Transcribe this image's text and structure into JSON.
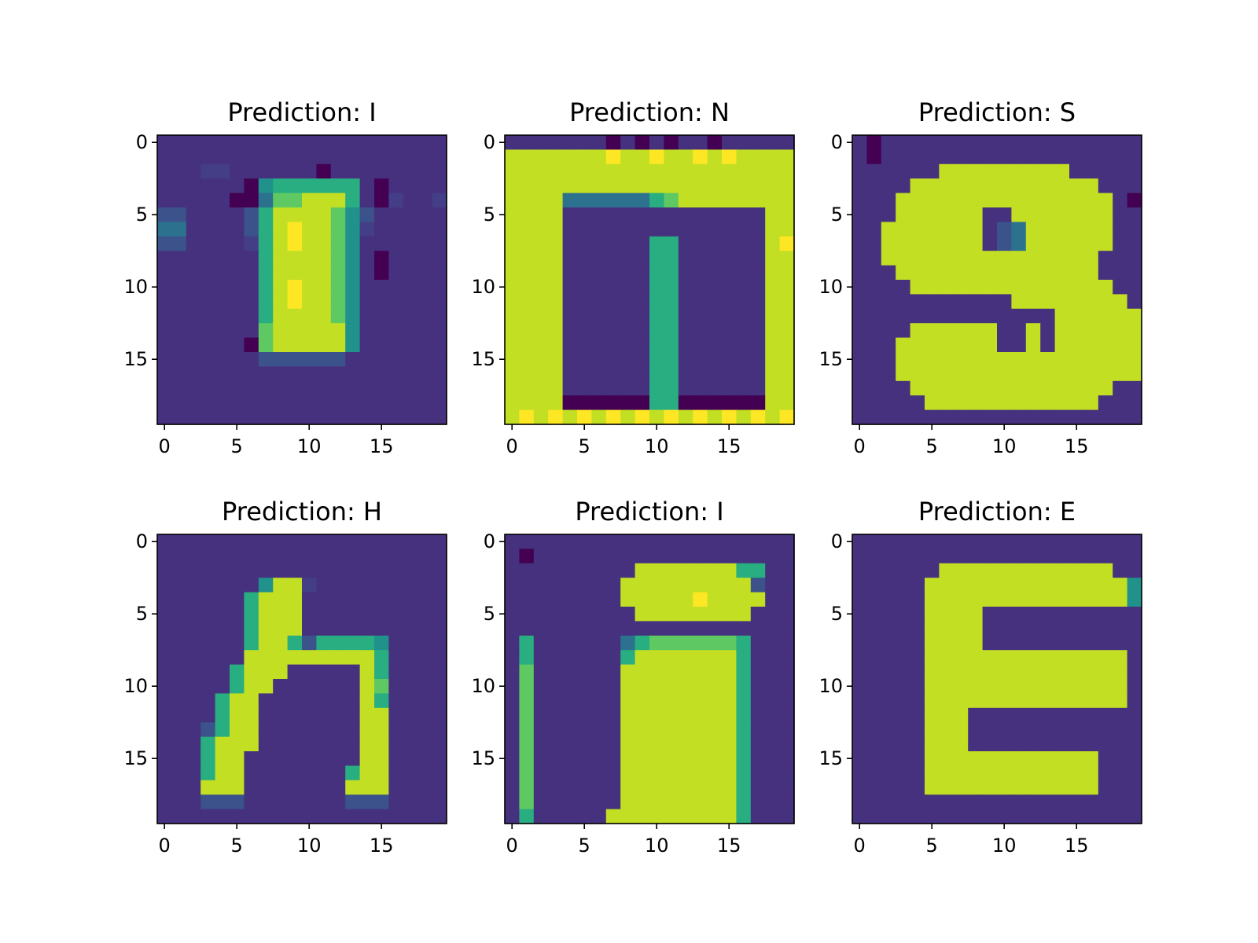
{
  "chart_data": [
    {
      "type": "heatmap",
      "title": "Prediction: I",
      "colormap": "viridis",
      "xticks": [
        "0",
        "5",
        "10",
        "15"
      ],
      "yticks": [
        "0",
        "5",
        "10",
        "15"
      ],
      "xlim": [
        -0.5,
        19.5
      ],
      "ylim": [
        19.5,
        -0.5
      ],
      "z": [
        "11111111111111111111",
        "11111111111111111111",
        "11122111111011111111",
        "11111105666666101111",
        "11111004778886102112",
        "33111136888875311111",
        "44111136898875211111",
        "33111126898875111111",
        "11111116888875101111",
        "11111116888875101111",
        "11111116898875111111",
        "11111116898875111111",
        "11111116888875111111",
        "11111117888885111111",
        "11111107888885111111",
        "11111113333331111111",
        "11111111111111111111",
        "11111111111111111111",
        "11111111111111111111",
        "11111111111111111111"
      ]
    },
    {
      "type": "heatmap",
      "title": "Prediction: N",
      "colormap": "viridis",
      "xticks": [
        "0",
        "5",
        "10",
        "15"
      ],
      "yticks": [
        "0",
        "5",
        "10",
        "15"
      ],
      "xlim": [
        -0.5,
        19.5
      ],
      "ylim": [
        19.5,
        -0.5
      ],
      "z": [
        "11111110101011011111",
        "88888889889889898888",
        "88888888888888888888",
        "88888888888888888888",
        "88884444446788888888",
        "88881111111111111188",
        "88881111111111111188",
        "88881111116611111189",
        "88881111116611111188",
        "88881111116611111188",
        "88881111116611111188",
        "88881111116611111188",
        "88881111116611111188",
        "88881111116611111188",
        "88881111116611111188",
        "88881111116611111188",
        "88881111116611111188",
        "88881111116611111188",
        "88880000006600000088",
        "89898989898989898989"
      ]
    },
    {
      "type": "heatmap",
      "title": "Prediction: S",
      "colormap": "viridis",
      "xticks": [
        "0",
        "5",
        "10",
        "15"
      ],
      "yticks": [
        "0",
        "5",
        "10",
        "15"
      ],
      "xlim": [
        -0.5,
        19.5
      ],
      "ylim": [
        19.5,
        -0.5
      ],
      "z": [
        "10111111111111111111",
        "10111111111111111111",
        "11111188888888811111",
        "11118888888888888111",
        "11188888888888888810",
        "11188888811888888811",
        "11888888813488888811",
        "11888888813488888811",
        "11888888888888888111",
        "11188888888888888111",
        "11118888888888888811",
        "11111111111888888881",
        "11111111111111888888",
        "11118888881181888888",
        "11188888881181888888",
        "11188888888888888888",
        "11188888888888888888",
        "11118888888888888811",
        "11111888888888888111",
        "11111111111111111111"
      ]
    },
    {
      "type": "heatmap",
      "title": "Prediction: H",
      "colormap": "viridis",
      "xticks": [
        "0",
        "5",
        "10",
        "15"
      ],
      "yticks": [
        "0",
        "5",
        "10",
        "15"
      ],
      "xlim": [
        -0.5,
        19.5
      ],
      "ylim": [
        19.5,
        -0.5
      ],
      "z": [
        "11111111111111111111",
        "11111111111111111111",
        "11111111111111111111",
        "11111115882111111111",
        "11111168881111111111",
        "11111168881111111111",
        "11111168881111111111",
        "11111168863666651111",
        "11111188888888861111",
        "11111688811111861111",
        "11111688111111871111",
        "11116881111111861111",
        "11116881111111881111",
        "11136881111111881111",
        "11168881111111881111",
        "11168811111111881111",
        "11168811111116881111",
        "11188811111118881111",
        "11133311111113331111",
        "11111111111111111111"
      ]
    },
    {
      "type": "heatmap",
      "title": "Prediction: I",
      "colormap": "viridis",
      "xticks": [
        "0",
        "5",
        "10",
        "15"
      ],
      "yticks": [
        "0",
        "5",
        "10",
        "15"
      ],
      "xlim": [
        -0.5,
        19.5
      ],
      "ylim": [
        19.5,
        -0.5
      ],
      "z": [
        "11111111111111111111",
        "10111111111111111111",
        "11111111188888886611",
        "11111111888888888311",
        "11111111888889888811",
        "11111111188888888111",
        "11111111111111111111",
        "16111111467777776111",
        "16111111688888886111",
        "17111111888888886111",
        "17111111888888886111",
        "17111111888888886111",
        "17111111888888886111",
        "17111111888888886111",
        "17111111888888886111",
        "17111111888888886111",
        "17111111888888886111",
        "17111111888888886111",
        "17111111888888886111",
        "16111118888888886111"
      ]
    },
    {
      "type": "heatmap",
      "title": "Prediction: E",
      "colormap": "viridis",
      "xticks": [
        "0",
        "5",
        "10",
        "15"
      ],
      "yticks": [
        "0",
        "5",
        "10",
        "15"
      ],
      "xlim": [
        -0.5,
        19.5
      ],
      "ylim": [
        19.5,
        -0.5
      ],
      "z": [
        "11111111111111111111",
        "11111111111111111111",
        "11111188888888888811",
        "11111888888888888885",
        "11111888888888888885",
        "11111888811111111111",
        "11111888811111111111",
        "11111888811111111111",
        "11111888888888888881",
        "11111888888888888881",
        "11111888888888888881",
        "11111888888888888881",
        "11111888111111111111",
        "11111888111111111111",
        "11111888111111111111",
        "11111888888888888111",
        "11111888888888888111",
        "11111888888888888111",
        "11111111111111111111",
        "11111111111111111111"
      ]
    }
  ]
}
